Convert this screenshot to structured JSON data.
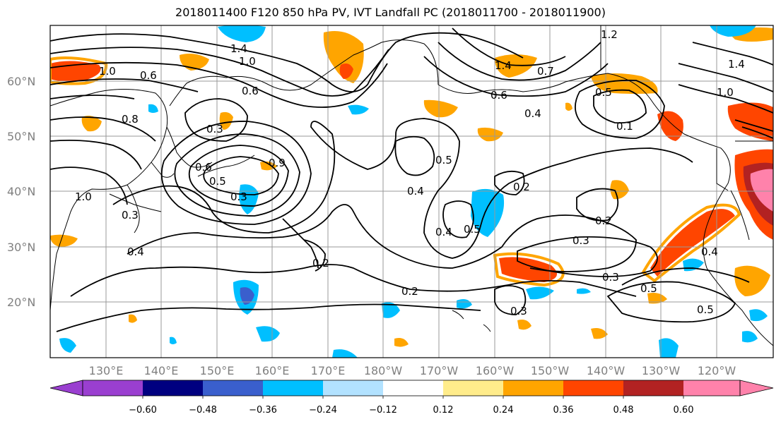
{
  "title": "2018011400 F120 850 hPa PV, IVT Landfall PC (2018011700 - 2018011900)",
  "lat_labels": [
    "60°N",
    "50°N",
    "40°N",
    "30°N",
    "20°N"
  ],
  "lon_labels": [
    "130°E",
    "140°E",
    "150°E",
    "160°E",
    "170°E",
    "180°W",
    "170°W",
    "160°W",
    "150°W",
    "140°W",
    "130°W",
    "120°W"
  ],
  "colorbar": {
    "ticks": [
      "−0.60",
      "−0.48",
      "−0.36",
      "−0.24",
      "−0.12",
      "0.12",
      "0.24",
      "0.36",
      "0.48",
      "0.60"
    ],
    "colors": [
      "#9a3fd0",
      "#000080",
      "#3a5fcd",
      "#00bfff",
      "#b2e2ff",
      "#ffffff",
      "#ffec8b",
      "#ffa500",
      "#ff4500",
      "#b22222",
      "#ff82ab"
    ]
  },
  "contour_labels": [
    "1.4",
    "1.0",
    "1.0",
    "0.6",
    "0.8",
    "0.6",
    "0.3",
    "0.9",
    "0.6",
    "0.5",
    "1.0",
    "0.3",
    "0.4",
    "0.3",
    "0.4",
    "0.2",
    "0.2",
    "0.5",
    "0.4",
    "0.2",
    "0.5",
    "0.2",
    "0.3",
    "0.3",
    "0.4",
    "0.5",
    "0.5",
    "0.3",
    "1.4",
    "0.6",
    "0.4",
    "0.5",
    "0.1",
    "1.2",
    "1.4",
    "1.0",
    "0.7"
  ]
}
